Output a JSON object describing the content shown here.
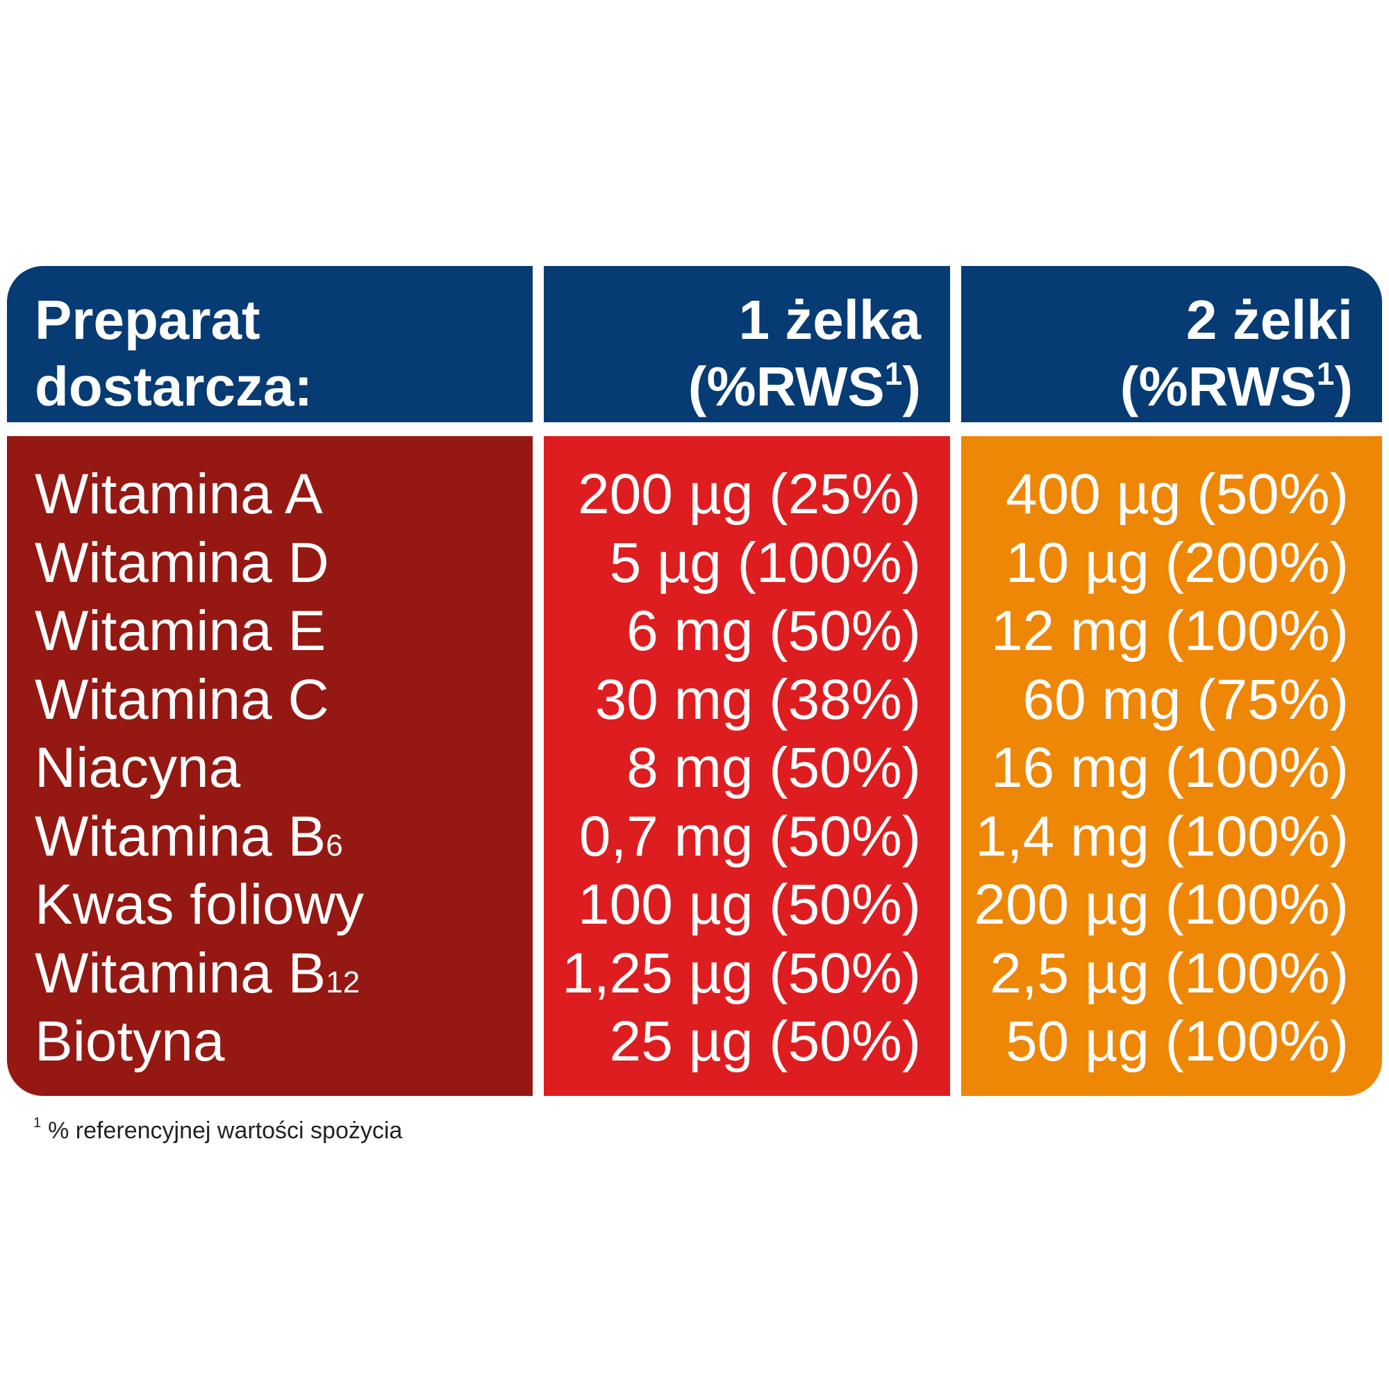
{
  "header": {
    "labels_title_line1": "Preparat",
    "labels_title_line2": "dostarcza:",
    "col1_line1": "1 żelka",
    "col1_line2_prefix": "(%RWS",
    "col1_line2_sup": "1",
    "col1_line2_suffix": ")",
    "col2_line1": "2 żelki",
    "col2_line2_prefix": "(%RWS",
    "col2_line2_sup": "1",
    "col2_line2_suffix": ")"
  },
  "rows": [
    {
      "name": "Witamina A",
      "name_sub": "",
      "one": "200 µg (25%)",
      "two": "400 µg (50%)"
    },
    {
      "name": "Witamina D",
      "name_sub": "",
      "one": "5 µg (100%)",
      "two": "10 µg (200%)"
    },
    {
      "name": "Witamina E",
      "name_sub": "",
      "one": "6 mg (50%)",
      "two": "12 mg (100%)"
    },
    {
      "name": "Witamina C",
      "name_sub": "",
      "one": "30 mg (38%)",
      "two": "60 mg (75%)"
    },
    {
      "name": "Niacyna",
      "name_sub": "",
      "one": "8 mg (50%)",
      "two": "16 mg (100%)"
    },
    {
      "name": "Witamina B",
      "name_sub": "6",
      "one": "0,7 mg (50%)",
      "two": "1,4 mg (100%)"
    },
    {
      "name": "Kwas foliowy",
      "name_sub": "",
      "one": "100 µg (50%)",
      "two": "200 µg (100%)"
    },
    {
      "name": "Witamina B",
      "name_sub": "12",
      "one": "1,25 µg (50%)",
      "two": "2,5 µg (100%)"
    },
    {
      "name": "Biotyna",
      "name_sub": "",
      "one": "25 µg (50%)",
      "two": "50 µg (100%)"
    }
  ],
  "footnote": {
    "marker": "1",
    "text": "% referencyjnej wartości spożycia"
  },
  "colors": {
    "header_bg": "#063b74",
    "labels_bg": "#951813",
    "one_bg": "#de1d20",
    "two_bg": "#ee8606",
    "text": "#ffffff"
  }
}
